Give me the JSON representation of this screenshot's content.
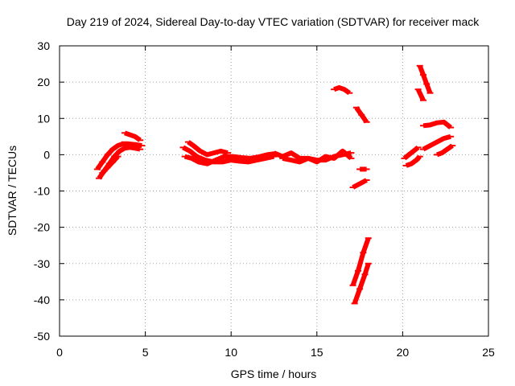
{
  "chart_data": {
    "type": "scatter",
    "title": "Day 219 of 2024, Sidereal Day-to-day VTEC variation (SDTVAR) for receiver mack",
    "xlabel": "GPS time / hours",
    "ylabel": "SDTVAR / TECUs",
    "xlim": [
      0,
      25
    ],
    "ylim": [
      -50,
      30
    ],
    "xticks": [
      0,
      5,
      10,
      15,
      20,
      25
    ],
    "yticks": [
      -50,
      -40,
      -30,
      -20,
      -10,
      0,
      10,
      20,
      30
    ],
    "grid": true,
    "legend": "none",
    "series_color": "#ff0000",
    "series": [
      {
        "segments": [
          {
            "x": [
              2.3,
              2.6,
              2.9,
              3.2,
              3.5,
              3.8,
              4.1,
              4.4,
              4.7
            ],
            "y": [
              -6.5,
              -4.5,
              -2.5,
              -0.5,
              1.0,
              1.8,
              2.0,
              1.8,
              1.5
            ]
          },
          {
            "x": [
              2.2,
              2.5,
              2.8,
              3.1,
              3.4,
              3.7
            ],
            "y": [
              -4.0,
              -2.0,
              0.0,
              1.5,
              2.5,
              3.0
            ]
          },
          {
            "x": [
              2.5,
              2.8,
              3.1,
              3.4
            ],
            "y": [
              -5.0,
              -3.5,
              -2.0,
              -0.5
            ]
          },
          {
            "x": [
              3.8,
              4.1,
              4.4,
              4.7
            ],
            "y": [
              6.0,
              5.5,
              5.0,
              4.0
            ]
          },
          {
            "x": [
              3.6,
              4.0,
              4.4,
              4.8
            ],
            "y": [
              3.0,
              3.0,
              2.8,
              2.5
            ]
          },
          {
            "x": [
              7.2,
              7.6,
              8.0,
              8.5,
              9.0,
              9.5,
              10.0,
              10.5,
              11.0,
              11.5,
              12.0,
              12.5
            ],
            "y": [
              2.0,
              1.0,
              -0.5,
              -1.5,
              -2.0,
              -2.0,
              -1.5,
              -1.8,
              -2.0,
              -1.5,
              -1.0,
              -0.5
            ]
          },
          {
            "x": [
              7.3,
              7.7,
              8.1,
              8.6,
              9.1,
              9.6,
              10.1,
              10.6,
              11.1,
              11.6,
              12.1,
              12.6
            ],
            "y": [
              -0.5,
              -1.0,
              -2.0,
              -2.5,
              -1.5,
              -0.5,
              -0.5,
              -0.8,
              -1.0,
              -0.6,
              0.0,
              0.3
            ]
          },
          {
            "x": [
              7.5,
              7.8,
              8.2,
              8.6,
              9.0,
              9.4,
              9.8
            ],
            "y": [
              3.5,
              2.5,
              1.0,
              0.0,
              0.5,
              1.0,
              0.5
            ]
          },
          {
            "x": [
              12.5,
              13.0,
              13.5,
              14.0,
              14.5,
              15.0,
              15.5,
              16.0,
              16.5,
              17.0
            ],
            "y": [
              0.5,
              -0.5,
              0.5,
              -1.0,
              -1.0,
              -1.5,
              -1.5,
              -0.5,
              0.0,
              0.5
            ]
          },
          {
            "x": [
              13.0,
              13.5,
              14.0,
              14.5,
              15.0,
              15.5,
              16.0,
              16.5,
              17.0
            ],
            "y": [
              -1.0,
              -1.5,
              -2.0,
              -1.0,
              -2.0,
              -0.5,
              -1.0,
              1.0,
              -1.0
            ]
          },
          {
            "x": [
              16.0,
              16.3,
              16.6,
              16.9
            ],
            "y": [
              18.0,
              18.5,
              18.0,
              17.0
            ]
          },
          {
            "x": [
              17.3,
              17.6,
              17.9
            ],
            "y": [
              13.0,
              11.0,
              9.0
            ]
          },
          {
            "x": [
              17.5,
              17.9
            ],
            "y": [
              -4.0,
              -4.0
            ]
          },
          {
            "x": [
              17.1,
              17.5,
              17.9
            ],
            "y": [
              -9.0,
              -8.0,
              -7.0
            ]
          },
          {
            "x": [
              17.1,
              17.4,
              17.7,
              18.0
            ],
            "y": [
              -36.0,
              -32.0,
              -27.0,
              -23.0
            ]
          },
          {
            "x": [
              17.2,
              17.5,
              17.8,
              18.0
            ],
            "y": [
              -41.0,
              -37.0,
              -33.0,
              -30.0
            ]
          },
          {
            "x": [
              20.2,
              20.5,
              20.8,
              21.0
            ],
            "y": [
              -3.0,
              -2.5,
              -1.5,
              -0.5
            ]
          },
          {
            "x": [
              20.1,
              20.5,
              20.9
            ],
            "y": [
              -1.0,
              0.5,
              2.0
            ]
          },
          {
            "x": [
              21.0,
              21.2,
              21.4,
              21.6
            ],
            "y": [
              24.5,
              22.0,
              19.5,
              17.0
            ]
          },
          {
            "x": [
              20.9,
              21.2
            ],
            "y": [
              18.0,
              15.0
            ]
          },
          {
            "x": [
              21.2,
              21.6,
              22.0,
              22.4,
              22.8
            ],
            "y": [
              8.0,
              8.2,
              8.8,
              9.0,
              7.5
            ]
          },
          {
            "x": [
              21.2,
              21.6,
              22.0,
              22.4,
              22.8
            ],
            "y": [
              1.5,
              2.5,
              3.5,
              4.5,
              5.0
            ]
          },
          {
            "x": [
              22.0,
              22.3,
              22.6,
              22.9
            ],
            "y": [
              0.0,
              0.5,
              1.5,
              2.5
            ]
          }
        ]
      }
    ]
  }
}
